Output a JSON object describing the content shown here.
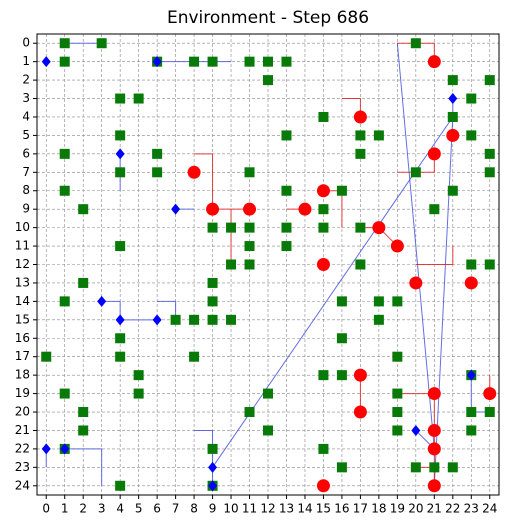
{
  "chart_data": {
    "type": "scatter",
    "title": "Environment - Step 686",
    "xlim": [
      -0.5,
      24.5
    ],
    "ylim": [
      24.5,
      -0.5
    ],
    "xticks": [
      0,
      1,
      2,
      3,
      4,
      5,
      6,
      7,
      8,
      9,
      10,
      11,
      12,
      13,
      14,
      15,
      16,
      17,
      18,
      19,
      20,
      21,
      22,
      23,
      24
    ],
    "yticks": [
      0,
      1,
      2,
      3,
      4,
      5,
      6,
      7,
      8,
      9,
      10,
      11,
      12,
      13,
      14,
      15,
      16,
      17,
      18,
      19,
      20,
      21,
      22,
      23,
      24
    ],
    "grid": true,
    "lines": [
      {
        "color": "#4a55e0",
        "points": [
          [
            1,
            0
          ],
          [
            3,
            0
          ]
        ]
      },
      {
        "color": "#4a55e0",
        "points": [
          [
            6,
            1
          ],
          [
            10,
            1
          ]
        ]
      },
      {
        "color": "#4a55e0",
        "points": [
          [
            4,
            6
          ],
          [
            4,
            8
          ]
        ]
      },
      {
        "color": "#4a55e0",
        "points": [
          [
            7,
            9
          ],
          [
            8,
            9
          ]
        ]
      },
      {
        "color": "#4a55e0",
        "points": [
          [
            3,
            14
          ],
          [
            4,
            14
          ],
          [
            4,
            15
          ],
          [
            6,
            15
          ]
        ]
      },
      {
        "color": "#4a55e0",
        "points": [
          [
            6,
            14
          ],
          [
            7,
            14
          ],
          [
            7,
            15
          ]
        ]
      },
      {
        "color": "#4a55e0",
        "points": [
          [
            0,
            22
          ],
          [
            0,
            23
          ]
        ]
      },
      {
        "color": "#4a55e0",
        "points": [
          [
            1,
            22
          ],
          [
            3,
            22
          ],
          [
            3,
            24
          ]
        ]
      },
      {
        "color": "#4a55e0",
        "points": [
          [
            8,
            21
          ],
          [
            9,
            21
          ],
          [
            9,
            24
          ]
        ]
      },
      {
        "color": "#4a55e0",
        "points": [
          [
            9,
            23
          ],
          [
            22,
            4
          ]
        ]
      },
      {
        "color": "#4a55e0",
        "points": [
          [
            19,
            0
          ],
          [
            21,
            22
          ]
        ]
      },
      {
        "color": "#4a55e0",
        "points": [
          [
            21,
            24
          ],
          [
            22,
            4
          ],
          [
            22,
            3
          ]
        ]
      },
      {
        "color": "#4a55e0",
        "points": [
          [
            23,
            18
          ],
          [
            23,
            20
          ],
          [
            24,
            20
          ]
        ]
      },
      {
        "color": "#4a55e0",
        "points": [
          [
            20,
            21
          ],
          [
            21,
            22
          ]
        ]
      },
      {
        "color": "#e02020",
        "points": [
          [
            19,
            0
          ],
          [
            21,
            0
          ],
          [
            21,
            1
          ]
        ]
      },
      {
        "color": "#e02020",
        "points": [
          [
            16,
            3
          ],
          [
            17,
            3
          ],
          [
            17,
            4
          ]
        ]
      },
      {
        "color": "#e02020",
        "points": [
          [
            8,
            6
          ],
          [
            9,
            6
          ],
          [
            9,
            9
          ],
          [
            11,
            9
          ]
        ]
      },
      {
        "color": "#e02020",
        "points": [
          [
            10,
            9
          ],
          [
            10,
            12
          ]
        ]
      },
      {
        "color": "#e02020",
        "points": [
          [
            13,
            9
          ],
          [
            14,
            9
          ]
        ]
      },
      {
        "color": "#e02020",
        "points": [
          [
            15,
            8
          ],
          [
            16,
            8
          ],
          [
            16,
            10
          ]
        ]
      },
      {
        "color": "#e02020",
        "points": [
          [
            17,
            10
          ],
          [
            18,
            10
          ],
          [
            19,
            11
          ]
        ]
      },
      {
        "color": "#e02020",
        "points": [
          [
            19,
            7
          ],
          [
            21,
            7
          ],
          [
            21,
            6
          ]
        ]
      },
      {
        "color": "#e02020",
        "points": [
          [
            20,
            12
          ],
          [
            22,
            12
          ],
          [
            22,
            11
          ]
        ]
      },
      {
        "color": "#e02020",
        "points": [
          [
            17,
            18
          ],
          [
            17,
            20
          ]
        ]
      },
      {
        "color": "#e02020",
        "points": [
          [
            19,
            19
          ],
          [
            21,
            19
          ]
        ]
      },
      {
        "color": "#e02020",
        "points": [
          [
            24,
            18
          ],
          [
            24,
            19
          ]
        ]
      },
      {
        "color": "#e02020",
        "points": [
          [
            20,
            23
          ],
          [
            21,
            23
          ]
        ]
      },
      {
        "color": "#e02020",
        "points": [
          [
            21,
            19
          ],
          [
            21,
            24
          ]
        ]
      }
    ],
    "series": [
      {
        "marker": "square",
        "color": "#087a08",
        "x": [
          1,
          3,
          20,
          1,
          6,
          8,
          9,
          11,
          12,
          13,
          12,
          22,
          24,
          4,
          5,
          23,
          15,
          22,
          4,
          13,
          17,
          18,
          23,
          1,
          6,
          17,
          24,
          4,
          6,
          11,
          20,
          24,
          1,
          13,
          16,
          22,
          2,
          15,
          21,
          9,
          10,
          11,
          13,
          15,
          17,
          4,
          11,
          13,
          10,
          11,
          17,
          23,
          24,
          2,
          9,
          1,
          9,
          16,
          18,
          19,
          7,
          8,
          9,
          10,
          18,
          4,
          16,
          0,
          4,
          8,
          19,
          5,
          15,
          16,
          23,
          1,
          5,
          12,
          19,
          2,
          11,
          19,
          23,
          24,
          2,
          12,
          19,
          23,
          1,
          9,
          15,
          16,
          20,
          21,
          22,
          4,
          9
        ],
        "y": [
          0,
          0,
          0,
          1,
          1,
          1,
          1,
          1,
          1,
          1,
          2,
          2,
          2,
          3,
          3,
          3,
          4,
          4,
          5,
          5,
          5,
          5,
          5,
          6,
          6,
          6,
          6,
          7,
          7,
          7,
          7,
          7,
          8,
          8,
          8,
          8,
          9,
          9,
          9,
          10,
          10,
          10,
          10,
          10,
          10,
          11,
          11,
          11,
          12,
          12,
          12,
          12,
          12,
          13,
          13,
          14,
          14,
          14,
          14,
          14,
          15,
          15,
          15,
          15,
          15,
          16,
          16,
          17,
          17,
          17,
          17,
          18,
          18,
          18,
          18,
          19,
          19,
          19,
          19,
          20,
          20,
          20,
          20,
          20,
          21,
          21,
          21,
          21,
          22,
          22,
          22,
          23,
          23,
          23,
          23,
          24,
          24
        ]
      },
      {
        "marker": "circle",
        "color": "#ff0000",
        "x": [
          21,
          17,
          22,
          21,
          8,
          15,
          9,
          11,
          14,
          18,
          19,
          15,
          20,
          23,
          17,
          21,
          24,
          17,
          21,
          21,
          15,
          21
        ],
        "y": [
          1,
          4,
          5,
          6,
          7,
          8,
          9,
          9,
          9,
          10,
          11,
          12,
          13,
          13,
          18,
          19,
          19,
          20,
          21,
          22,
          24,
          24
        ]
      },
      {
        "marker": "diamond",
        "color": "#0000ff",
        "x": [
          0,
          6,
          22,
          4,
          7,
          3,
          4,
          6,
          23,
          20,
          0,
          1,
          9,
          9
        ],
        "y": [
          1,
          1,
          3,
          6,
          9,
          14,
          15,
          15,
          18,
          21,
          22,
          22,
          23,
          24
        ]
      }
    ]
  }
}
